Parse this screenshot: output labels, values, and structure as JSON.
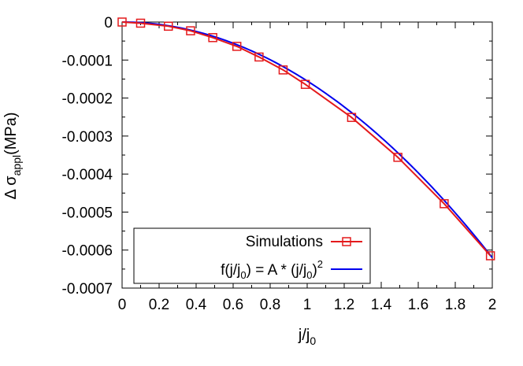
{
  "chart_data": {
    "type": "line",
    "xlabel": {
      "main": "j/j",
      "sub": "0"
    },
    "ylabel": {
      "prefix": "Δ σ",
      "sub": "appl",
      "suffix": "(MPa)"
    },
    "xlim": [
      0,
      2
    ],
    "ylim": [
      -0.0007,
      0
    ],
    "xticks": [
      {
        "value": 0,
        "label": "0"
      },
      {
        "value": 0.2,
        "label": "0.2"
      },
      {
        "value": 0.4,
        "label": "0.4"
      },
      {
        "value": 0.6,
        "label": "0.6"
      },
      {
        "value": 0.8,
        "label": "0.8"
      },
      {
        "value": 1.0,
        "label": "1"
      },
      {
        "value": 1.2,
        "label": "1.2"
      },
      {
        "value": 1.4,
        "label": "1.4"
      },
      {
        "value": 1.6,
        "label": "1.6"
      },
      {
        "value": 1.8,
        "label": "1.8"
      },
      {
        "value": 2.0,
        "label": "2"
      }
    ],
    "yticks": [
      {
        "value": 0,
        "label": "0"
      },
      {
        "value": -0.0001,
        "label": "-0.0001"
      },
      {
        "value": -0.0002,
        "label": "-0.0002"
      },
      {
        "value": -0.0003,
        "label": "-0.0003"
      },
      {
        "value": -0.0004,
        "label": "-0.0004"
      },
      {
        "value": -0.0005,
        "label": "-0.0005"
      },
      {
        "value": -0.0006,
        "label": "-0.0006"
      },
      {
        "value": -0.0007,
        "label": "-0.0007"
      }
    ],
    "grid": false,
    "legend_position": "bottom-left",
    "series": [
      {
        "name": "Simulations",
        "color": "#e41a1c",
        "marker": "open-square",
        "x": [
          0,
          0.1,
          0.25,
          0.37,
          0.49,
          0.62,
          0.74,
          0.87,
          0.99,
          1.24,
          1.49,
          1.74,
          1.99
        ],
        "y": [
          0,
          -3e-06,
          -1.1e-05,
          -2.3e-05,
          -4.1e-05,
          -6.4e-05,
          -9.2e-05,
          -0.000126,
          -0.000164,
          -0.000251,
          -0.000356,
          -0.000478,
          -0.000615
        ]
      },
      {
        "name_parts": [
          "f(j/j",
          "0",
          ") = A * (j/j",
          "0",
          ")",
          "2"
        ],
        "color": "#0000ee",
        "marker": "none",
        "function": "A*x^2",
        "A": -0.000155
      }
    ]
  }
}
